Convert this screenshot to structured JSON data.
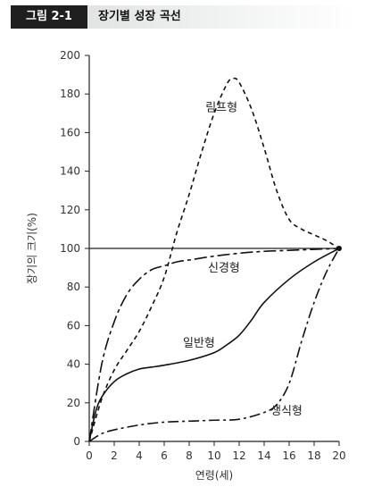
{
  "figure": {
    "label": "그림 2-1",
    "title": "장기별 성장 곡선"
  },
  "chart_data": {
    "type": "line",
    "title": "장기별 성장 곡선",
    "xlabel": "연령(세)",
    "ylabel": "장기의 크기(%)",
    "xlim": [
      0,
      20
    ],
    "ylim": [
      0,
      200
    ],
    "xticks": [
      0,
      2,
      4,
      6,
      8,
      10,
      12,
      14,
      16,
      18,
      20
    ],
    "yticks": [
      0,
      20,
      40,
      60,
      80,
      100,
      120,
      140,
      160,
      180,
      200
    ],
    "grid": false,
    "reference_line": {
      "y": 100
    },
    "series": [
      {
        "name": "림프형",
        "dash": "5,4",
        "label_pos": {
          "x": 9.3,
          "y": 171
        },
        "x": [
          0,
          1,
          2,
          3,
          4,
          5,
          6,
          7,
          8,
          9,
          10,
          11,
          11.5,
          12,
          13,
          14,
          15,
          16,
          17,
          18,
          19,
          20
        ],
        "y": [
          0,
          22,
          37,
          47,
          57,
          70,
          85,
          108,
          128,
          150,
          170,
          185,
          188,
          186,
          172,
          152,
          130,
          115,
          110,
          107,
          104,
          100
        ]
      },
      {
        "name": "신경형",
        "dash": "14,4,4,4",
        "label_pos": {
          "x": 9.5,
          "y": 88
        },
        "x": [
          0,
          1,
          2,
          3,
          4,
          5,
          6,
          7,
          8,
          10,
          12,
          14,
          16,
          18,
          20
        ],
        "y": [
          0,
          40,
          62,
          76,
          84,
          89,
          91,
          93,
          94,
          96,
          97.5,
          98.5,
          99,
          99.5,
          100
        ]
      },
      {
        "name": "일반형",
        "dash": "",
        "label_pos": {
          "x": 7.5,
          "y": 49
        },
        "x": [
          0,
          0.5,
          1,
          2,
          3,
          4,
          5,
          6,
          8,
          10,
          11,
          12,
          13,
          14,
          16,
          18,
          20
        ],
        "y": [
          0,
          15,
          23,
          31,
          35,
          37.5,
          38.5,
          39.5,
          42,
          46,
          50,
          55,
          63,
          72,
          84,
          93,
          100
        ]
      },
      {
        "name": "생식형",
        "dash": "12,4,3,4",
        "label_pos": {
          "x": 14.5,
          "y": 14
        },
        "x": [
          0,
          1,
          2,
          4,
          6,
          8,
          10,
          12,
          14,
          15,
          16,
          17,
          18,
          19,
          20
        ],
        "y": [
          0,
          4,
          6,
          8.5,
          10,
          10.5,
          11,
          11.5,
          15,
          19,
          30,
          52,
          72,
          88,
          100
        ]
      }
    ]
  }
}
